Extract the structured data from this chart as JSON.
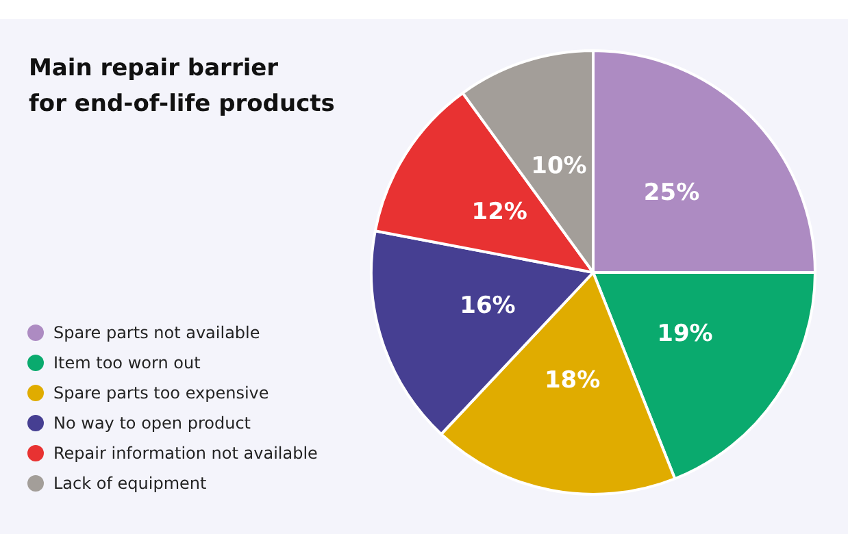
{
  "chart_data": {
    "type": "pie",
    "title": "Main repair barrier\nfor end-of-life products",
    "categories": [
      "Spare parts not available",
      "Item too worn out",
      "Spare parts too expensive",
      "No way to open product",
      "Repair information not available",
      "Lack of equipment"
    ],
    "values": [
      25,
      19,
      18,
      16,
      12,
      10
    ],
    "value_labels": [
      "25%",
      "19%",
      "18%",
      "16%",
      "12%",
      "10%"
    ],
    "colors": [
      "#ad8bc2",
      "#0aaa6e",
      "#e0ac00",
      "#463f92",
      "#e83232",
      "#a39e99"
    ],
    "legend": "bottom left"
  }
}
